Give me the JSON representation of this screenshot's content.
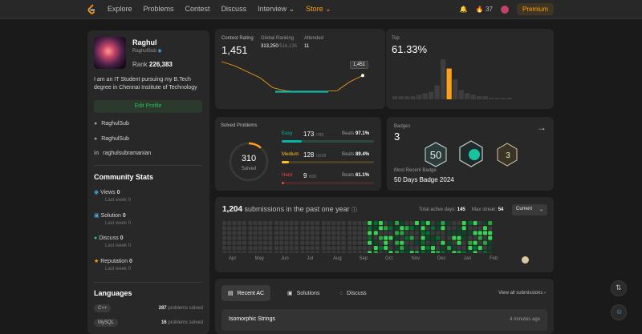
{
  "nav": {
    "items": [
      "Explore",
      "Problems",
      "Contest",
      "Discuss",
      "Interview",
      "Store"
    ],
    "streak": "37",
    "premium": "Premium"
  },
  "profile": {
    "name": "Raghul",
    "handle": "RaghulSub",
    "rank_label": "Rank",
    "rank_value": "226,383",
    "bio": "I am an IT Student pursuing my B.Tech degree in Chennai Institute of Technology",
    "edit": "Edit Profile",
    "github": "RaghulSub",
    "twitter": "RaghulSub",
    "linkedin": "raghulsubramanian"
  },
  "community": {
    "title": "Community Stats",
    "items": [
      {
        "label": "Views",
        "value": "0",
        "sub": "Last week 0"
      },
      {
        "label": "Solution",
        "value": "0",
        "sub": "Last week 0"
      },
      {
        "label": "Discuss",
        "value": "0",
        "sub": "Last week 0"
      },
      {
        "label": "Reputation",
        "value": "0",
        "sub": "Last week 0"
      }
    ]
  },
  "languages": {
    "title": "Languages",
    "items": [
      {
        "name": "C++",
        "count": "287",
        "suffix": "problems solved"
      },
      {
        "name": "MySQL",
        "count": "16",
        "suffix": "problems solved"
      }
    ]
  },
  "contest": {
    "rating_label": "Contest Rating",
    "rating": "1,451",
    "global_label": "Global Ranking",
    "global": "313,250",
    "global_total": "/516,135",
    "attended_label": "Attended",
    "attended": "11",
    "tooltip": "1,451",
    "rating_points": [
      1520,
      1500,
      1470,
      1440,
      1390,
      1375,
      1370,
      1370,
      1372,
      1375,
      1420,
      1451
    ]
  },
  "top": {
    "label": "Top",
    "value": "61.33%",
    "bars": [
      2,
      2,
      2,
      2,
      3,
      4,
      5,
      9,
      26,
      20,
      13,
      6,
      4,
      3,
      2,
      2,
      1,
      1,
      1,
      1
    ],
    "highlight_index": 9
  },
  "solved": {
    "title": "Solved Problems",
    "total": "310",
    "total_label": "Solved",
    "rows": [
      {
        "name": "Easy",
        "count": "173",
        "total": "/785",
        "beats_label": "Beats",
        "beats": "97.1%",
        "fraction": 0.22,
        "color": "#00b8a3",
        "track": "#2a4a46"
      },
      {
        "name": "Medium",
        "count": "128",
        "total": "/1628",
        "beats_label": "Beats",
        "beats": "89.4%",
        "fraction": 0.08,
        "color": "#ffc01e",
        "track": "#4a4224"
      },
      {
        "name": "Hard",
        "count": "9",
        "total": "/690",
        "beats_label": "Beats",
        "beats": "61.1%",
        "fraction": 0.013,
        "color": "#ef4743",
        "track": "#4a2a2a"
      }
    ]
  },
  "badges": {
    "title": "Badges",
    "count": "3",
    "recent_label": "Most Recent Badge",
    "recent": "50 Days Badge 2024"
  },
  "heatmap": {
    "count": "1,204",
    "text": "submissions in the past one year",
    "active_label": "Total active days:",
    "active": "145",
    "streak_label": "Max streak:",
    "streak": "54",
    "select": "Current",
    "months": [
      "Apr",
      "May",
      "Jun",
      "Jul",
      "Aug",
      "Sep",
      "Oct",
      "Nov",
      "Dec",
      "Jan",
      "Feb"
    ]
  },
  "recent": {
    "tabs": [
      "Recent AC",
      "Solutions",
      "Discuss"
    ],
    "view_all": "View all submissions",
    "items": [
      {
        "title": "Isomorphic Strings",
        "time": "4 minutes ago"
      }
    ]
  }
}
